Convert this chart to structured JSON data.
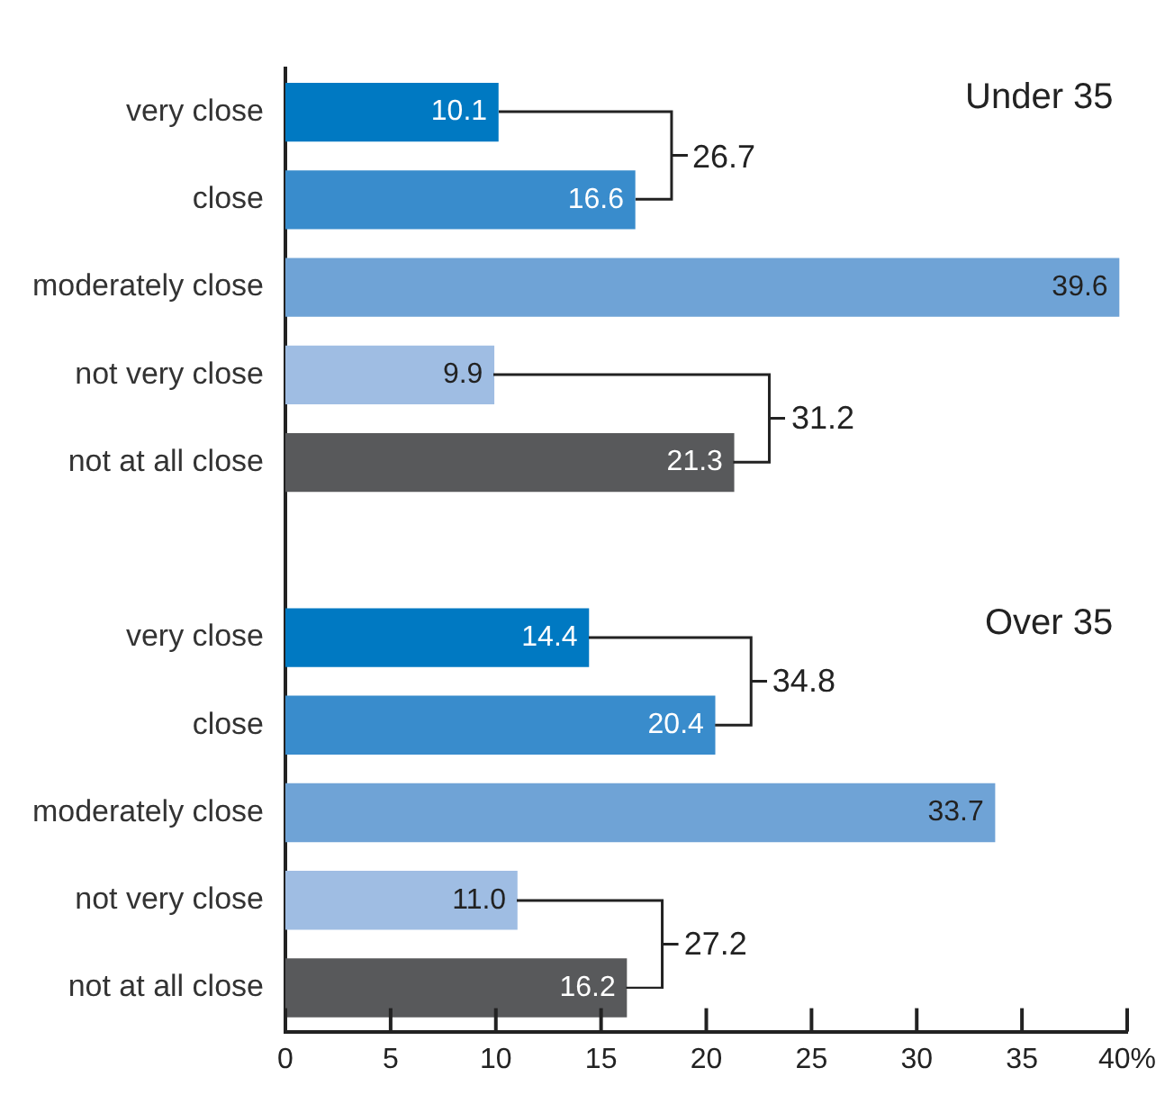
{
  "chart_data": {
    "type": "bar",
    "orientation": "horizontal",
    "categories": [
      "very close",
      "close",
      "moderately close",
      "not very close",
      "not at all close",
      null,
      "very close",
      "close",
      "moderately close",
      "not very close",
      "not at all close"
    ],
    "values": [
      10.1,
      16.6,
      39.6,
      9.9,
      21.3,
      null,
      14.4,
      20.4,
      33.7,
      11.0,
      16.2
    ],
    "value_labels": [
      "10.1",
      "16.6",
      "39.6",
      "9.9",
      "21.3",
      null,
      "14.4",
      "20.4",
      "33.7",
      "11.0",
      "16.2"
    ],
    "colors": [
      "#0079c2",
      "#398ccc",
      "#6fa3d6",
      "#9fbde3",
      "#58595b",
      "#ffffff",
      "#0079c2",
      "#398ccc",
      "#6fa3d6",
      "#9fbde3",
      "#58595b"
    ],
    "xlim": [
      0,
      40
    ],
    "xticks": [
      0,
      5,
      10,
      15,
      20,
      25,
      30,
      35,
      {
        "value": 40,
        "label": "40%"
      }
    ],
    "grid": false,
    "annotations": [
      "Under 35",
      "26.7",
      "31.2",
      "Over 35",
      "34.8",
      "27.2"
    ]
  }
}
